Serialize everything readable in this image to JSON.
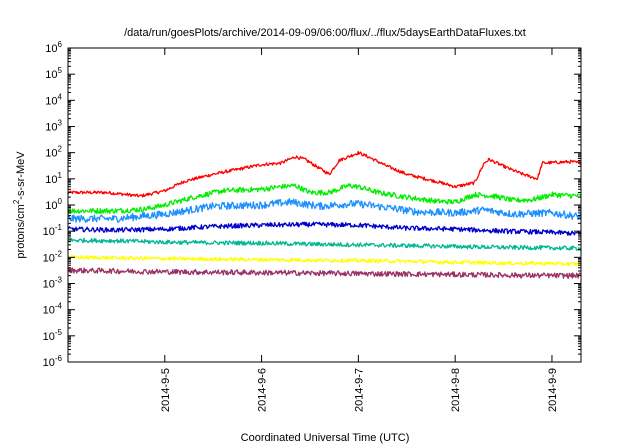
{
  "chart_data": {
    "type": "line",
    "title": "/data/run/goesPlots/archive/2014-09-09/06:00/flux/../flux/5daysEarthDataFluxes.txt",
    "xlabel": "Coordinated Universal Time (UTC)",
    "ylabel": {
      "prefix": "protons/cm",
      "sup": "2",
      "suffix": "-s-sr-MeV"
    },
    "yscale": "log",
    "ylim": [
      1e-06,
      1000000.0
    ],
    "xlim": [
      0,
      5.3
    ],
    "grid": false,
    "legend": "none",
    "x_ticks": [
      {
        "label": "2014-9-5",
        "x": 1
      },
      {
        "label": "2014-9-6",
        "x": 2
      },
      {
        "label": "2014-9-7",
        "x": 3
      },
      {
        "label": "2014-9-8",
        "x": 4
      },
      {
        "label": "2014-9-9",
        "x": 5
      }
    ],
    "y_ticks": [
      {
        "exp": "-6",
        "value": 1e-06
      },
      {
        "exp": "-5",
        "value": 1e-05
      },
      {
        "exp": "-4",
        "value": 0.0001
      },
      {
        "exp": "-3",
        "value": 0.001
      },
      {
        "exp": "-2",
        "value": 0.01
      },
      {
        "exp": "-1",
        "value": 0.1
      },
      {
        "exp": "0",
        "value": 1
      },
      {
        "exp": "1",
        "value": 10
      },
      {
        "exp": "2",
        "value": 100
      },
      {
        "exp": "3",
        "value": 1000
      },
      {
        "exp": "4",
        "value": 10000
      },
      {
        "exp": "5",
        "value": 100000
      },
      {
        "exp": "6",
        "value": 1000000
      }
    ],
    "series": [
      {
        "color": "#ff0000",
        "noise": 0.06,
        "x": [
          0,
          0.4,
          0.75,
          1.0,
          1.2,
          1.5,
          1.8,
          2.0,
          2.2,
          2.35,
          2.45,
          2.6,
          2.7,
          2.8,
          3.0,
          3.1,
          3.3,
          3.5,
          3.8,
          4.0,
          4.2,
          4.3,
          4.35,
          4.55,
          4.7,
          4.85,
          4.9,
          5.2,
          5.3
        ],
        "y": [
          3,
          3,
          2.2,
          3.5,
          8,
          15,
          25,
          35,
          40,
          70,
          55,
          25,
          15,
          50,
          100,
          70,
          30,
          15,
          8,
          5,
          7,
          40,
          55,
          25,
          15,
          10,
          40,
          45,
          40
        ]
      },
      {
        "color": "#00ee00",
        "noise": 0.1,
        "x": [
          0,
          0.5,
          0.8,
          1.0,
          1.3,
          1.6,
          2.0,
          2.2,
          2.35,
          2.5,
          2.7,
          2.9,
          3.0,
          3.2,
          3.5,
          3.8,
          4.0,
          4.2,
          4.4,
          4.6,
          4.8,
          5.0,
          5.3
        ],
        "y": [
          0.6,
          0.6,
          0.7,
          1.0,
          2.0,
          3.5,
          4.0,
          5.0,
          5.5,
          3.0,
          3.0,
          5.5,
          5.0,
          3.0,
          2.0,
          1.4,
          1.3,
          2.5,
          2.2,
          1.5,
          1.6,
          2.5,
          2.2
        ]
      },
      {
        "color": "#1e90ff",
        "noise": 0.14,
        "x": [
          0,
          0.5,
          1.0,
          1.5,
          2.0,
          2.3,
          2.6,
          2.9,
          3.0,
          3.3,
          3.6,
          4.0,
          4.3,
          4.6,
          5.0,
          5.3
        ],
        "y": [
          0.3,
          0.3,
          0.45,
          0.9,
          1.0,
          1.3,
          0.9,
          1.1,
          1.1,
          0.8,
          0.55,
          0.5,
          0.65,
          0.45,
          0.5,
          0.35
        ]
      },
      {
        "color": "#0000cc",
        "noise": 0.09,
        "x": [
          0,
          0.5,
          1.0,
          1.5,
          2.0,
          2.5,
          3.0,
          3.5,
          4.0,
          4.5,
          5.0,
          5.3
        ],
        "y": [
          0.12,
          0.11,
          0.12,
          0.15,
          0.17,
          0.18,
          0.17,
          0.13,
          0.12,
          0.1,
          0.09,
          0.08
        ]
      },
      {
        "color": "#00b894",
        "noise": 0.08,
        "x": [
          0,
          0.5,
          1.0,
          1.5,
          2.0,
          2.5,
          3.0,
          3.5,
          4.0,
          4.5,
          5.0,
          5.3
        ],
        "y": [
          0.045,
          0.043,
          0.038,
          0.036,
          0.035,
          0.032,
          0.03,
          0.028,
          0.026,
          0.024,
          0.023,
          0.022
        ]
      },
      {
        "color": "#ffff00",
        "noise": 0.07,
        "x": [
          0,
          0.5,
          1.0,
          1.5,
          2.0,
          2.5,
          3.0,
          3.5,
          4.0,
          4.5,
          5.0,
          5.3
        ],
        "y": [
          0.01,
          0.0095,
          0.009,
          0.0085,
          0.0082,
          0.0078,
          0.0075,
          0.007,
          0.0065,
          0.006,
          0.0058,
          0.0055
        ]
      },
      {
        "color": "#993366",
        "noise": 0.1,
        "x": [
          0,
          0.5,
          1.0,
          1.5,
          2.0,
          2.5,
          3.0,
          3.5,
          4.0,
          4.5,
          5.0,
          5.3
        ],
        "y": [
          0.0032,
          0.003,
          0.0028,
          0.0027,
          0.0026,
          0.0025,
          0.0024,
          0.0023,
          0.0022,
          0.0021,
          0.002,
          0.002
        ]
      }
    ]
  }
}
